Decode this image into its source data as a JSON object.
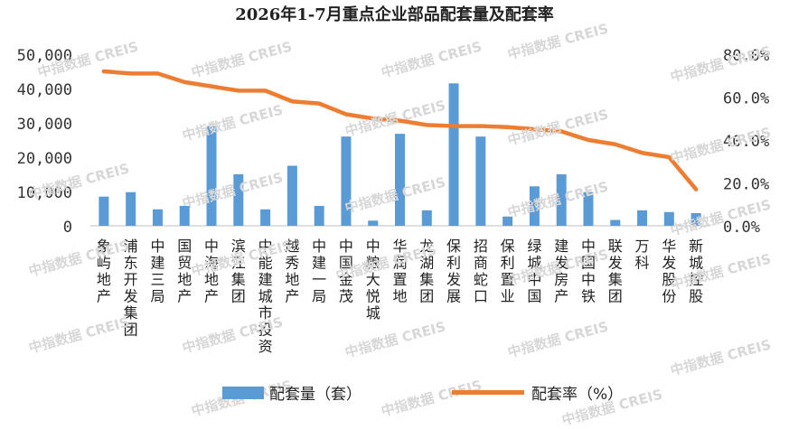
{
  "chart_data": {
    "type": "bar",
    "title": "2026年1-7月重点企业部品配套量及配套率",
    "categories": [
      "象屿地产",
      "浦东开发集团",
      "中建三局",
      "国贸地产",
      "中海地产",
      "滨江集团",
      "中能建城市投资",
      "越秀地产",
      "中建一局",
      "中国金茂",
      "中粮大悦城",
      "华润置地",
      "龙湖集团",
      "保利发展",
      "招商蛇口",
      "保利置业",
      "绿城中国",
      "建发房产",
      "中国中铁",
      "联发集团",
      "万科",
      "华发股份",
      "新城控股"
    ],
    "series": [
      {
        "name": "配套量（套）",
        "type": "bar",
        "axis": "left",
        "values": [
          8500,
          9800,
          4800,
          5800,
          29000,
          15000,
          4800,
          17500,
          5800,
          26000,
          1500,
          26800,
          4500,
          41500,
          26000,
          2700,
          11500,
          15000,
          9800,
          1700,
          4500,
          4000,
          3700
        ]
      },
      {
        "name": "配套率（%）",
        "type": "line",
        "axis": "right",
        "values": [
          72,
          71,
          71,
          67,
          65,
          63,
          63,
          58,
          57,
          52,
          50,
          49,
          47,
          46.5,
          46.5,
          46,
          45,
          44,
          40,
          38,
          34,
          32,
          17
        ]
      }
    ],
    "y_left": {
      "min": 0,
      "max": 50000,
      "ticks": [
        "0",
        "10,000",
        "20,000",
        "30,000",
        "40,000",
        "50,000"
      ]
    },
    "y_right": {
      "min": 0,
      "max": 80,
      "ticks": [
        "0.0%",
        "20.0%",
        "40.0%",
        "60.0%",
        "80.0%"
      ]
    },
    "grid": false,
    "legend": "bottom",
    "colors": {
      "bar": "#5b9bd5",
      "line": "#ed7d31"
    }
  },
  "watermark": {
    "text": "中指数据 CREIS"
  }
}
